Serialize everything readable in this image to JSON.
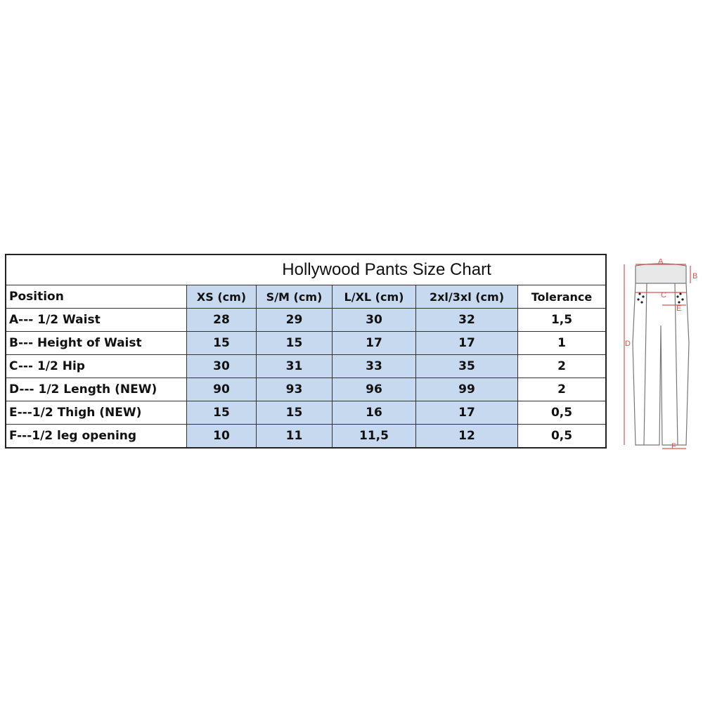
{
  "chart_data": {
    "type": "table",
    "title": "Hollywood Pants Size Chart",
    "columns": [
      "Position",
      "XS (cm)",
      "S/M (cm)",
      "L/XL (cm)",
      "2xl/3xl (cm)",
      "Tolerance"
    ],
    "rows": [
      [
        "A--- 1/2 Waist",
        "28",
        "29",
        "30",
        "32",
        "1,5"
      ],
      [
        "B--- Height of Waist",
        "15",
        "15",
        "17",
        "17",
        "1"
      ],
      [
        "C--- 1/2 Hip",
        "30",
        "31",
        "33",
        "35",
        "2"
      ],
      [
        "D--- 1/2 Length (NEW)",
        "90",
        "93",
        "96",
        "99",
        "2"
      ],
      [
        "E---1/2 Thigh (NEW)",
        "15",
        "15",
        "16",
        "17",
        "0,5"
      ],
      [
        "F---1/2 leg opening",
        "10",
        "11",
        "11,5",
        "12",
        "0,5"
      ]
    ]
  },
  "diagram": {
    "labels": [
      "A",
      "B",
      "C",
      "D",
      "E",
      "F"
    ],
    "line_color": "#d9534f",
    "cell_fill": "#c6d9ef"
  }
}
